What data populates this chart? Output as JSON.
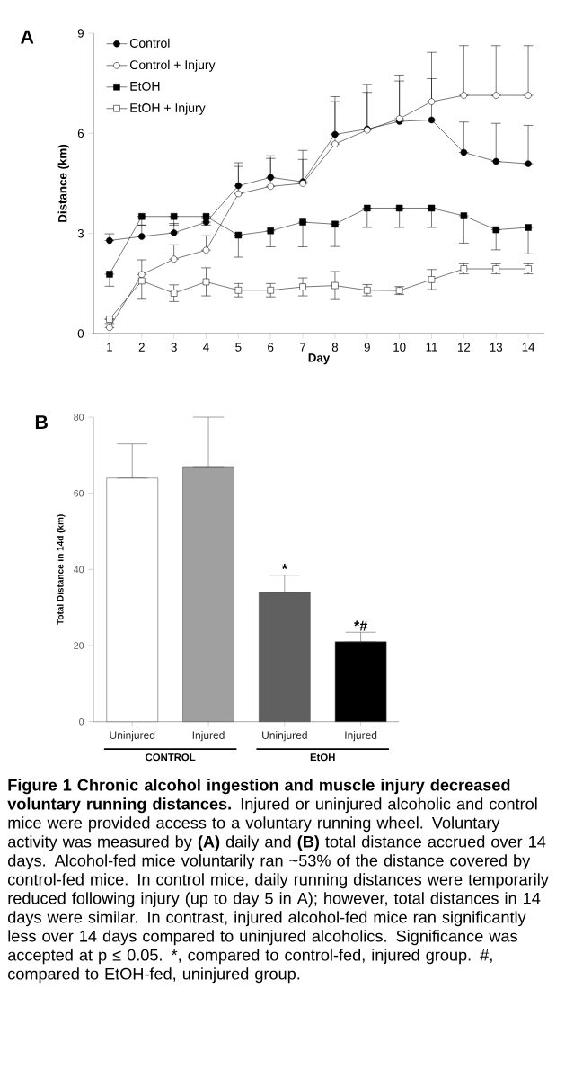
{
  "chart_data": [
    {
      "type": "line",
      "title": "A",
      "xlabel": "Day",
      "ylabel": "Distance (km)",
      "x": [
        1,
        2,
        3,
        4,
        5,
        6,
        7,
        8,
        9,
        10,
        11,
        12,
        13,
        14
      ],
      "xlim": [
        0.5,
        14.5
      ],
      "xticks": [
        1,
        2,
        3,
        4,
        5,
        6,
        7,
        8,
        9,
        10,
        11,
        12,
        13,
        14
      ],
      "ylim": [
        0,
        9
      ],
      "yticks": [
        0,
        3,
        6,
        9
      ],
      "legend": "top left",
      "series": [
        {
          "name": "Control",
          "color": "#000000",
          "marker": "circle",
          "values": [
            2.79,
            2.91,
            3.02,
            3.34,
            4.43,
            4.68,
            4.55,
            5.97,
            6.13,
            6.36,
            6.4,
            5.43,
            5.16,
            5.09
          ],
          "errors": [
            [
              2.79,
              2.99
            ],
            [
              2.91,
              3.25
            ],
            [
              3.02,
              3.3
            ],
            [
              3.34,
              3.45
            ],
            [
              4.43,
              5.12
            ],
            [
              4.68,
              5.33
            ],
            [
              4.55,
              5.49
            ],
            [
              5.97,
              7.1
            ],
            [
              6.13,
              7.47
            ],
            [
              6.36,
              7.75
            ],
            [
              6.4,
              8.43
            ],
            [
              5.43,
              6.34
            ],
            [
              5.16,
              6.3
            ],
            [
              5.09,
              6.24
            ]
          ]
        },
        {
          "name": "Control + Injury",
          "color": "#ffffff",
          "marker": "circle",
          "values": [
            0.18,
            1.77,
            2.23,
            2.5,
            4.19,
            4.41,
            4.5,
            5.68,
            6.1,
            6.44,
            6.95,
            7.14,
            7.14,
            7.14
          ],
          "errors": [
            [
              0.18,
              0.3
            ],
            [
              1.77,
              2.21
            ],
            [
              2.23,
              2.66
            ],
            [
              2.5,
              2.93
            ],
            [
              4.19,
              5.01
            ],
            [
              4.41,
              5.25
            ],
            [
              4.5,
              5.22
            ],
            [
              5.68,
              6.95
            ],
            [
              6.1,
              7.23
            ],
            [
              6.44,
              7.57
            ],
            [
              6.95,
              7.64
            ],
            [
              7.14,
              8.63
            ],
            [
              7.14,
              8.63
            ],
            [
              7.14,
              8.63
            ]
          ]
        },
        {
          "name": "EtOH",
          "color": "#000000",
          "marker": "square",
          "values": [
            1.78,
            3.51,
            3.51,
            3.51,
            2.95,
            3.08,
            3.34,
            3.28,
            3.76,
            3.76,
            3.76,
            3.53,
            3.11,
            3.18
          ],
          "errors": [
            [
              1.42,
              1.78
            ],
            [
              3.25,
              3.51
            ],
            [
              3.25,
              3.51
            ],
            [
              3.25,
              3.51
            ],
            [
              2.29,
              2.95
            ],
            [
              2.6,
              3.08
            ],
            [
              2.6,
              3.34
            ],
            [
              2.61,
              3.28
            ],
            [
              3.18,
              3.76
            ],
            [
              3.18,
              3.76
            ],
            [
              3.18,
              3.76
            ],
            [
              2.71,
              3.53
            ],
            [
              2.51,
              3.11
            ],
            [
              2.39,
              3.18
            ]
          ]
        },
        {
          "name": "EtOH + Injury",
          "color": "#ffffff",
          "marker": "square",
          "values": [
            0.43,
            1.58,
            1.21,
            1.55,
            1.3,
            1.3,
            1.4,
            1.44,
            1.3,
            1.29,
            1.62,
            1.94,
            1.94,
            1.94
          ],
          "errors": [
            null,
            [
              1.03,
              1.58
            ],
            0.25,
            0.42,
            0.2,
            0.2,
            0.27,
            0.42,
            0.17,
            0.12,
            0.3,
            0.15,
            0.15,
            0.15
          ]
        }
      ]
    },
    {
      "type": "bar",
      "title": "B",
      "ylabel": "Total Distance in 14d (km)",
      "categories": [
        "Uninjured",
        "Injured",
        "Uninjured",
        "Injured"
      ],
      "values": [
        64,
        67,
        34,
        21
      ],
      "colors": [
        "#ffffff",
        "#a0a0a0",
        "#606060",
        "#000000"
      ],
      "errors": [
        [
          64,
          73
        ],
        [
          67,
          80
        ],
        [
          34,
          38.5
        ],
        [
          21,
          23.5
        ]
      ],
      "value_labels": [
        null,
        null,
        "*",
        "*#"
      ],
      "ylim": [
        0,
        80
      ],
      "yticks": [
        0,
        20,
        40,
        60,
        80
      ],
      "annotations": [
        "CONTROL",
        "EtOH",
        "**Figure 1 Chronic alcohol ingestion and muscle injury decreased voluntary running distances.** Injured or uninjured alcoholic and control mice were provided access to a voluntary running wheel. Voluntary activity was measured by **(A)** daily and **(B)** total distance accrued over 14 days. Alcohol-fed mice voluntarily ran ~53% of the distance covered by control-fed mice. In control mice, daily running distances were temporarily reduced following injury (up to day 5 in A); however, total distances in 14 days were similar. In contrast, injured alcohol-fed mice ran significantly less over 14 days compared to uninjured alcoholics. Significance was accepted at p ≤ 0.05. *, compared to control-fed, injured group. #, compared to EtOH-fed, uninjured group."
      ]
    }
  ]
}
